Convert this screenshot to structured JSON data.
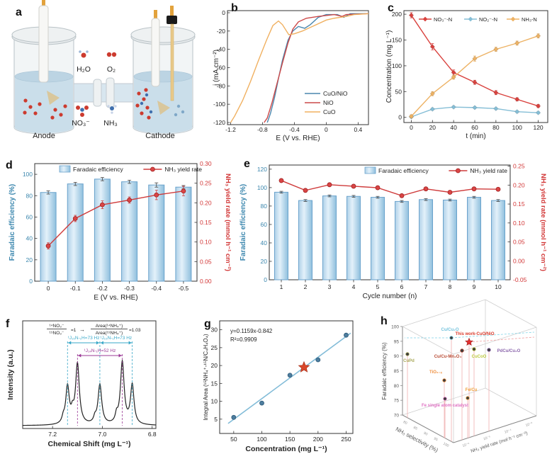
{
  "panels": {
    "a": {
      "letter": "a",
      "anode": "Anode",
      "cathode": "Cathode",
      "mol_top_left": "H₂O",
      "mol_top_right": "O₂",
      "mol_bottom_left": "NO₃⁻",
      "mol_bottom_right": "NH₃"
    },
    "b": {
      "letter": "b"
    },
    "c": {
      "letter": "c"
    },
    "d": {
      "letter": "d"
    },
    "e": {
      "letter": "e"
    },
    "f": {
      "letter": "f"
    },
    "g": {
      "letter": "g"
    },
    "h": {
      "letter": "h"
    }
  },
  "chart_data": {
    "b": {
      "type": "line",
      "xlabel": "E (V vs. RHE)",
      "ylabel": "j (mA cm⁻²)",
      "xlim": [
        -1.24,
        0.53
      ],
      "ylim": [
        0,
        -120
      ],
      "xticks": [
        -1.2,
        -0.8,
        -0.4,
        0,
        0.4
      ],
      "yticks": [
        0,
        -20,
        -40,
        -60,
        -80,
        -100,
        -120
      ],
      "legend_position": "inside-lower-right",
      "series": [
        {
          "name": "CuO/NiO",
          "color": "#4a86ad",
          "points": [
            [
              0.53,
              -1
            ],
            [
              0.3,
              -1
            ],
            [
              0.22,
              -5
            ],
            [
              0.14,
              -2
            ],
            [
              0,
              -2
            ],
            [
              -0.1,
              -5
            ],
            [
              -0.2,
              -13
            ],
            [
              -0.27,
              -17
            ],
            [
              -0.35,
              -15
            ],
            [
              -0.42,
              -20
            ],
            [
              -0.48,
              -30
            ],
            [
              -0.55,
              -52
            ],
            [
              -0.6,
              -72
            ],
            [
              -0.65,
              -93
            ],
            [
              -0.7,
              -110
            ],
            [
              -0.74,
              -120
            ]
          ]
        },
        {
          "name": "NiO",
          "color": "#cc4848",
          "points": [
            [
              0.53,
              -1
            ],
            [
              0.25,
              -2
            ],
            [
              0.2,
              -4
            ],
            [
              0.1,
              -2
            ],
            [
              -0.1,
              -4
            ],
            [
              -0.25,
              -6
            ],
            [
              -0.35,
              -10
            ],
            [
              -0.42,
              -18
            ],
            [
              -0.48,
              -33
            ],
            [
              -0.55,
              -55
            ],
            [
              -0.62,
              -78
            ],
            [
              -0.68,
              -98
            ],
            [
              -0.74,
              -115
            ],
            [
              -0.78,
              -120
            ]
          ]
        },
        {
          "name": "CuO",
          "color": "#f0b060",
          "points": [
            [
              0.53,
              -1
            ],
            [
              0.35,
              -2
            ],
            [
              0.25,
              -4
            ],
            [
              0.1,
              -6
            ],
            [
              0,
              -8
            ],
            [
              -0.15,
              -14
            ],
            [
              -0.3,
              -20
            ],
            [
              -0.4,
              -23
            ],
            [
              -0.47,
              -24
            ],
            [
              -0.55,
              -13
            ],
            [
              -0.6,
              -9
            ],
            [
              -0.67,
              -14
            ],
            [
              -0.75,
              -30
            ],
            [
              -0.85,
              -52
            ],
            [
              -0.95,
              -75
            ],
            [
              -1.05,
              -96
            ],
            [
              -1.15,
              -113
            ],
            [
              -1.2,
              -120
            ]
          ]
        }
      ]
    },
    "c": {
      "type": "line",
      "xlabel": "t (min)",
      "ylabel": "Concentration (mg L⁻¹)",
      "xlim": [
        -7,
        129
      ],
      "ylim": [
        -10,
        207
      ],
      "xticks": [
        0,
        20,
        40,
        60,
        80,
        100,
        120
      ],
      "yticks": [
        0,
        50,
        100,
        150,
        200
      ],
      "x": [
        0,
        20,
        40,
        60,
        80,
        100,
        120
      ],
      "series": [
        {
          "name": "NO₃⁻-N",
          "color": "#d9413d",
          "values": [
            198,
            137,
            87,
            68,
            48,
            35,
            22
          ],
          "errors": [
            5,
            6,
            5,
            4,
            4,
            3,
            3
          ]
        },
        {
          "name": "NO₂⁻-N",
          "color": "#85bed6",
          "values": [
            1,
            16,
            20,
            19,
            17,
            11,
            9
          ],
          "errors": [
            2,
            2,
            2,
            2,
            2,
            2,
            2
          ]
        },
        {
          "name": "NH₃-N",
          "color": "#edb264",
          "values": [
            2,
            46,
            78,
            114,
            132,
            144,
            158
          ],
          "errors": [
            3,
            4,
            4,
            5,
            4,
            4,
            4
          ]
        }
      ]
    },
    "d": {
      "type": "bar+line",
      "xlabel": "E (V vs. RHE)",
      "ylabel_left": "Faradaic efficiency (%)",
      "ylabel_right": "NH₃ yield rate (mmol h⁻¹ cm⁻²)",
      "categories": [
        "0",
        "-0.1",
        "-0.2",
        "-0.3",
        "-0.4",
        "-0.5"
      ],
      "yticks_left": [
        0,
        20,
        40,
        60,
        80,
        100
      ],
      "ylim_left": [
        0,
        110
      ],
      "yticks_right": [
        0.0,
        0.05,
        0.1,
        0.15,
        0.2,
        0.25,
        0.3
      ],
      "ylim_right": [
        0,
        0.3
      ],
      "bars": {
        "name": "Faradaic efficiency",
        "values": [
          83,
          91,
          95.5,
          93,
          90,
          88
        ],
        "errors": [
          1.5,
          1.5,
          1.5,
          1.5,
          2,
          1.5
        ]
      },
      "line": {
        "name": "NH₃ yield rate",
        "values": [
          0.09,
          0.16,
          0.195,
          0.207,
          0.22,
          0.23
        ],
        "errors": [
          0.008,
          0.008,
          0.01,
          0.008,
          0.012,
          0.012
        ]
      }
    },
    "e": {
      "type": "bar+line",
      "xlabel": "Cycle number (n)",
      "ylabel_left": "Faradaic efficiency (%)",
      "ylabel_right": "NH₃ yield rate (mmol h⁻¹ cm⁻²)",
      "categories": [
        "1",
        "2",
        "3",
        "4",
        "5",
        "6",
        "7",
        "8",
        "9",
        "10"
      ],
      "yticks_left": [
        0,
        20,
        40,
        60,
        80,
        100,
        120
      ],
      "ylim_left": [
        0,
        124.5
      ],
      "yticks_right": [
        -0.05,
        0.0,
        0.05,
        0.1,
        0.15,
        0.2,
        0.25
      ],
      "ylim_right": [
        -0.05,
        0.253
      ],
      "bars": {
        "name": "Faradaic efficiency",
        "values": [
          95,
          86,
          91,
          90.5,
          89.5,
          85,
          87,
          86.5,
          89.5,
          86
        ],
        "errors": [
          1,
          1,
          1,
          1,
          1,
          1,
          1,
          1,
          1,
          1
        ]
      },
      "line": {
        "name": "NH₃ yield rate",
        "values": [
          0.212,
          0.186,
          0.201,
          0.197,
          0.193,
          0.172,
          0.19,
          0.181,
          0.19,
          0.189
        ],
        "errors": [
          0.004,
          0.004,
          0.004,
          0.004,
          0.004,
          0.004,
          0.004,
          0.004,
          0.004,
          0.004
        ]
      }
    },
    "f": {
      "type": "nmr-line",
      "xlabel": "Chemical Shift (mg L⁻¹)",
      "ylabel": "Intensity (a.u.)",
      "xlim": [
        7.32,
        6.785
      ],
      "xticks": [
        7.2,
        7.0,
        6.8
      ],
      "peaks": [
        {
          "x": 7.14,
          "h": 0.6,
          "w": 0.0085
        },
        {
          "x": 7.1,
          "h": 0.97,
          "w": 0.009
        },
        {
          "x": 7.01,
          "h": 0.64,
          "w": 0.009
        },
        {
          "x": 6.92,
          "h": 1.0,
          "w": 0.009
        },
        {
          "x": 6.88,
          "h": 0.63,
          "w": 0.0085
        }
      ],
      "shoulders": [
        {
          "x": 7.157,
          "h": 0.08,
          "w": 0.006
        },
        {
          "x": 7.12,
          "h": 0.14,
          "w": 0.006
        },
        {
          "x": 7.03,
          "h": 0.08,
          "w": 0.006
        },
        {
          "x": 6.943,
          "h": 0.12,
          "w": 0.006
        }
      ],
      "annotations": {
        "frac1_num": "¹⁴NO₃⁻",
        "frac1_den": "¹⁵NO₃⁻",
        "frac1_eq": "=1",
        "arrow": "→",
        "frac2_num": "Area(¹⁴NH₄⁺)",
        "frac2_den": "Area(¹⁵NH₄⁺)",
        "frac2_eq": "=1.03",
        "j15_left": "¹J₁₅N-₁H=73 Hz",
        "j15_right": "¹J₁₅N-₁H=73 Hz",
        "j14": "¹J₁₄N-₁H=52 Hz",
        "j15_color": "#3aa8c8",
        "j14_color": "#9b3a96"
      },
      "doublet_positions": [
        7.14,
        7.01,
        6.88
      ],
      "triplet_positions": [
        7.1,
        6.92
      ]
    },
    "g": {
      "type": "scatter",
      "xlabel": "Concentration (mg L⁻¹)",
      "ylabel": "Integral Area (¹⁵NH₄⁺-¹⁵N/C₄H₄O₄)",
      "xlim": [
        25,
        262
      ],
      "ylim": [
        1,
        32.5
      ],
      "xticks": [
        50,
        100,
        150,
        200,
        250
      ],
      "yticks": [
        5,
        10,
        15,
        20,
        25,
        30
      ],
      "points": [
        [
          50,
          5.5
        ],
        [
          100,
          9.5
        ],
        [
          150,
          17.3
        ],
        [
          200,
          21.6
        ],
        [
          250,
          28.5
        ]
      ],
      "star_point": [
        175,
        19.5
      ],
      "fit": {
        "equation": "y=0.1159x-0.842",
        "r2": "R²=0.9909",
        "slope": 0.1159,
        "intercept": -0.842,
        "color": "#82bcd8"
      },
      "point_color": "#4d7d9e",
      "star_color": "#d9472b"
    },
    "h": {
      "type": "scatter3d",
      "zlabel": "Faradaic efficiency (%)",
      "xlabel": "NH₃ selectivity (%)",
      "ylabel": "NH₃ yield rate (mol h⁻¹ cm⁻²)",
      "zticks": [
        100,
        95,
        90,
        85,
        80,
        75,
        70
      ],
      "sel_ticks": [
        "80",
        "85",
        "90",
        "95",
        "100"
      ],
      "yield_ticks": [
        "10⁻⁶",
        "10⁻⁵",
        "10⁻⁴",
        "10⁻³"
      ],
      "points": [
        {
          "label": "Cu/Cu₂O",
          "color": "#74c3dd",
          "x": 102,
          "y": 57,
          "lx": 100,
          "ly": 47,
          "star": false
        },
        {
          "label": "This work-CuO/NiO",
          "color": "#d93a2b",
          "x": 127,
          "y": 63,
          "lx": 135,
          "ly": 53,
          "star": true
        },
        {
          "label": "Cu/Cu-Mn₃O₄",
          "color": "#b84a33",
          "x": 117,
          "y": 75,
          "lx": 97,
          "ly": 85,
          "star": false
        },
        {
          "label": "CuCoO",
          "color": "#bcc93e",
          "x": 134,
          "y": 73,
          "lx": 141,
          "ly": 85,
          "star": false
        },
        {
          "label": "PdCu/Cu₂O",
          "color": "#8a64ab",
          "x": 155,
          "y": 74,
          "lx": 183,
          "ly": 77,
          "star": false
        },
        {
          "label": "CuPd",
          "color": "#a9a95a",
          "x": 40,
          "y": 80,
          "lx": 42,
          "ly": 91,
          "star": false
        },
        {
          "label": "TiO₂₋ₓ",
          "color": "#ef8f3e",
          "x": 92,
          "y": 117,
          "lx": 80,
          "ly": 107,
          "star": false
        },
        {
          "label": "Fe/Cu",
          "color": "#efa23e",
          "x": 125,
          "y": 142,
          "lx": 130,
          "ly": 132,
          "star": false
        },
        {
          "label": "Fe single atom catalyst",
          "color": "#df72c3",
          "x": 93,
          "y": 143,
          "lx": 93,
          "ly": 154,
          "star": false
        }
      ]
    }
  },
  "colors": {
    "bar_fill_light": "#e3f1fa",
    "bar_fill_mid": "#aed0e8",
    "bar_fill_dark": "#8fbfdd",
    "bar_edge": "#6ba3cc",
    "left_axis": "#3c87ae",
    "right_axis": "#d23737",
    "liquid": "#cadeea",
    "gold": "#e2a23c",
    "red_dot": "#cc3b2f",
    "blue_dot": "#3f6fae"
  }
}
